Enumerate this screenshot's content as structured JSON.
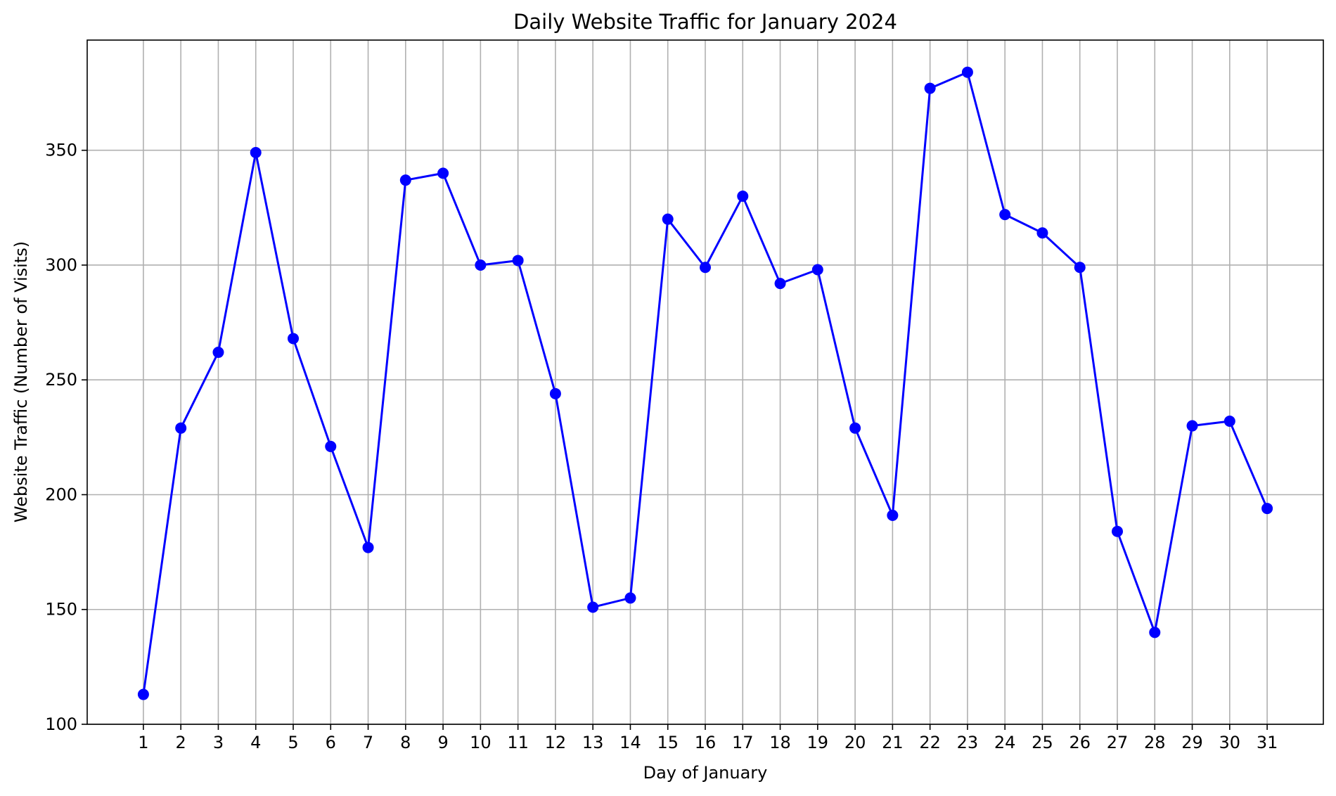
{
  "chart_data": {
    "type": "line",
    "title": "Daily Website Traffic for January 2024",
    "xlabel": "Day of January",
    "ylabel": "Website Traffic (Number of Visits)",
    "x": [
      1,
      2,
      3,
      4,
      5,
      6,
      7,
      8,
      9,
      10,
      11,
      12,
      13,
      14,
      15,
      16,
      17,
      18,
      19,
      20,
      21,
      22,
      23,
      24,
      25,
      26,
      27,
      28,
      29,
      30,
      31
    ],
    "values": [
      113,
      229,
      262,
      349,
      268,
      221,
      177,
      337,
      340,
      300,
      302,
      244,
      151,
      155,
      320,
      299,
      330,
      292,
      298,
      229,
      191,
      377,
      384,
      322,
      314,
      299,
      184,
      140,
      230,
      232,
      194
    ],
    "xlim": [
      -0.5,
      32.5
    ],
    "ylim": [
      100,
      398
    ],
    "yticks": [
      100,
      150,
      200,
      250,
      300,
      350
    ],
    "xticks": [
      1,
      2,
      3,
      4,
      5,
      6,
      7,
      8,
      9,
      10,
      11,
      12,
      13,
      14,
      15,
      16,
      17,
      18,
      19,
      20,
      21,
      22,
      23,
      24,
      25,
      26,
      27,
      28,
      29,
      30,
      31
    ],
    "grid": true,
    "line_color": "#0000ff",
    "marker": "circle",
    "grid_color": "#b0b0b0"
  }
}
